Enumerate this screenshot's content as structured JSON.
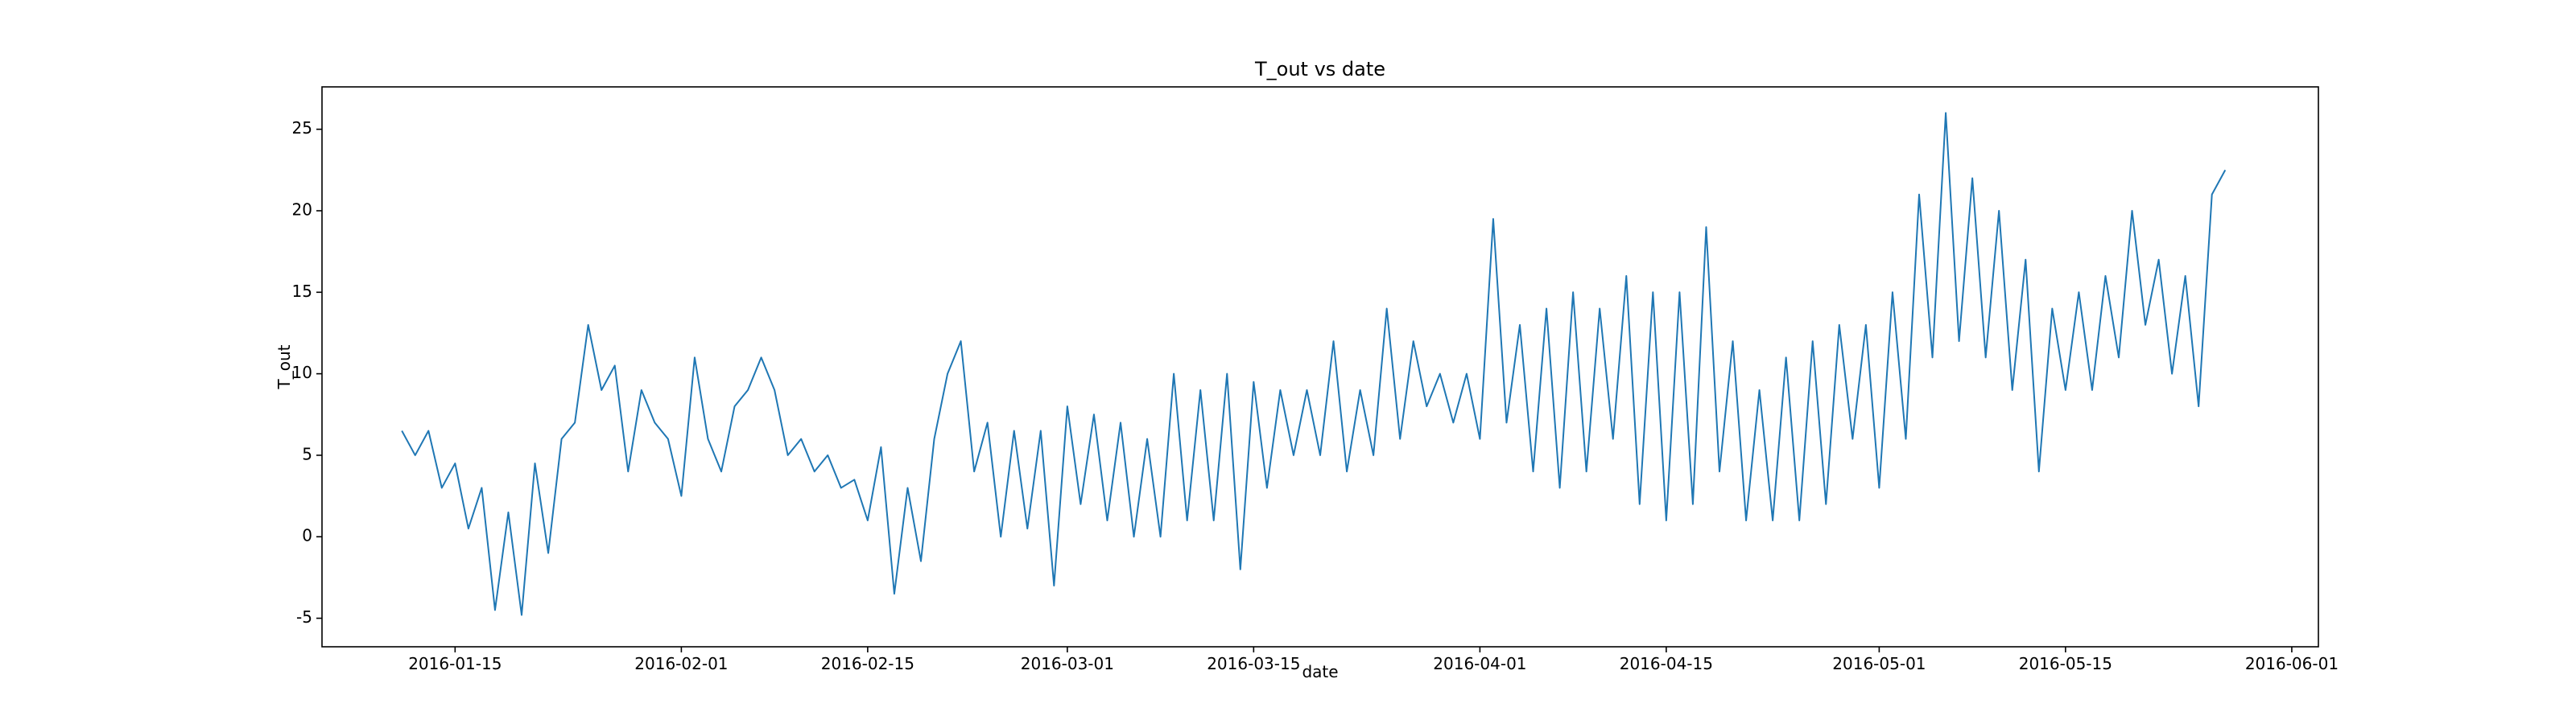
{
  "chart_data": {
    "type": "line",
    "title": "T_out vs date",
    "x_label": "date",
    "y_label": "T_out",
    "color": "#1f77b4",
    "x": [
      "2016-01-11",
      "2016-01-12",
      "2016-01-13",
      "2016-01-14",
      "2016-01-15",
      "2016-01-16",
      "2016-01-17",
      "2016-01-18",
      "2016-01-19",
      "2016-01-20",
      "2016-01-21",
      "2016-01-22",
      "2016-01-23",
      "2016-01-24",
      "2016-01-25",
      "2016-01-26",
      "2016-01-27",
      "2016-01-28",
      "2016-01-29",
      "2016-01-30",
      "2016-01-31",
      "2016-02-01",
      "2016-02-02",
      "2016-02-03",
      "2016-02-04",
      "2016-02-05",
      "2016-02-06",
      "2016-02-07",
      "2016-02-08",
      "2016-02-09",
      "2016-02-10",
      "2016-02-11",
      "2016-02-12",
      "2016-02-13",
      "2016-02-14",
      "2016-02-15",
      "2016-02-16",
      "2016-02-17",
      "2016-02-18",
      "2016-02-19",
      "2016-02-20",
      "2016-02-21",
      "2016-02-22",
      "2016-02-23",
      "2016-02-24",
      "2016-02-25",
      "2016-02-26",
      "2016-02-27",
      "2016-02-28",
      "2016-02-29",
      "2016-03-01",
      "2016-03-02",
      "2016-03-03",
      "2016-03-04",
      "2016-03-05",
      "2016-03-06",
      "2016-03-07",
      "2016-03-08",
      "2016-03-09",
      "2016-03-10",
      "2016-03-11",
      "2016-03-12",
      "2016-03-13",
      "2016-03-14",
      "2016-03-15",
      "2016-03-16",
      "2016-03-17",
      "2016-03-18",
      "2016-03-19",
      "2016-03-20",
      "2016-03-21",
      "2016-03-22",
      "2016-03-23",
      "2016-03-24",
      "2016-03-25",
      "2016-03-26",
      "2016-03-27",
      "2016-03-28",
      "2016-03-29",
      "2016-03-30",
      "2016-03-31",
      "2016-04-01",
      "2016-04-02",
      "2016-04-03",
      "2016-04-04",
      "2016-04-05",
      "2016-04-06",
      "2016-04-07",
      "2016-04-08",
      "2016-04-09",
      "2016-04-10",
      "2016-04-11",
      "2016-04-12",
      "2016-04-13",
      "2016-04-14",
      "2016-04-15",
      "2016-04-16",
      "2016-04-17",
      "2016-04-18",
      "2016-04-19",
      "2016-04-20",
      "2016-04-21",
      "2016-04-22",
      "2016-04-23",
      "2016-04-24",
      "2016-04-25",
      "2016-04-26",
      "2016-04-27",
      "2016-04-28",
      "2016-04-29",
      "2016-04-30",
      "2016-05-01",
      "2016-05-02",
      "2016-05-03",
      "2016-05-04",
      "2016-05-05",
      "2016-05-06",
      "2016-05-07",
      "2016-05-08",
      "2016-05-09",
      "2016-05-10",
      "2016-05-11",
      "2016-05-12",
      "2016-05-13",
      "2016-05-14",
      "2016-05-15",
      "2016-05-16",
      "2016-05-17",
      "2016-05-18",
      "2016-05-19",
      "2016-05-20",
      "2016-05-21",
      "2016-05-22",
      "2016-05-23",
      "2016-05-24",
      "2016-05-25",
      "2016-05-26",
      "2016-05-27"
    ],
    "values": [
      6.5,
      5,
      6.5,
      3,
      4.5,
      0.5,
      3,
      -4.5,
      1.5,
      -4.8,
      4.5,
      -1,
      6,
      7,
      13,
      9,
      10.5,
      4,
      9,
      7,
      6,
      2.5,
      11,
      6,
      4,
      8,
      9,
      11,
      9,
      5,
      6,
      4,
      5,
      3,
      3.5,
      1,
      5.5,
      -3.5,
      3,
      -1.5,
      6,
      10,
      12,
      4,
      7,
      0,
      6.5,
      0.5,
      6.5,
      -3,
      8,
      2,
      7.5,
      1,
      7,
      0,
      6,
      0,
      10,
      1,
      9,
      1,
      10,
      -2,
      9.5,
      3,
      9,
      5,
      9,
      5,
      12,
      4,
      9,
      5,
      14,
      6,
      12,
      8,
      10,
      7,
      10,
      6,
      19.5,
      7,
      13,
      4,
      14,
      3,
      15,
      4,
      14,
      6,
      16,
      2,
      15,
      1,
      15,
      2,
      19,
      4,
      12,
      1,
      9,
      1,
      11,
      1,
      12,
      2,
      13,
      6,
      13,
      3,
      15,
      6,
      21,
      11,
      26,
      12,
      22,
      11,
      20,
      9,
      17,
      4,
      14,
      9,
      15,
      9,
      16,
      11,
      20,
      13,
      17,
      10,
      16,
      8,
      21,
      22.5
    ],
    "xlim": [
      "2016-01-05",
      "2016-06-03"
    ],
    "xticks": [
      "2016-01-15",
      "2016-02-01",
      "2016-02-15",
      "2016-03-01",
      "2016-03-15",
      "2016-04-01",
      "2016-04-15",
      "2016-05-01",
      "2016-05-15",
      "2016-06-01"
    ],
    "ylim": [
      -6.75,
      27.6
    ],
    "yticks": [
      -5,
      0,
      5,
      10,
      15,
      20,
      25
    ],
    "grid": false
  }
}
